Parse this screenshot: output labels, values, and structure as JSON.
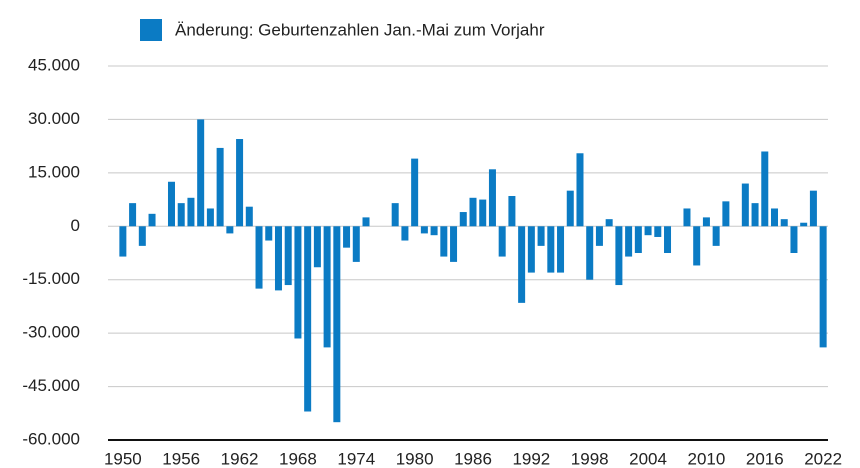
{
  "chart_data": {
    "type": "bar",
    "series": [
      {
        "name": "Änderung: Geburtenzahlen Jan.-Mai zum Vorjahr",
        "color": "#0b7bc4",
        "values": [
          -8500,
          6500,
          -5500,
          3500,
          0,
          12500,
          6500,
          8000,
          30000,
          5000,
          22000,
          -2000,
          24500,
          5500,
          -17500,
          -4000,
          -18000,
          -16500,
          -31500,
          -52000,
          -11500,
          -34000,
          -55000,
          -6000,
          -10000,
          2500,
          0,
          0,
          6500,
          -4000,
          19000,
          -2000,
          -2500,
          -8500,
          -10000,
          4000,
          8000,
          7500,
          16000,
          -8500,
          8500,
          -21500,
          -13000,
          -5500,
          -13000,
          -13000,
          10000,
          20500,
          -15000,
          -5500,
          2000,
          -16500,
          -8500,
          -7500,
          -2500,
          -3000,
          -7500,
          0,
          5000,
          -11000,
          2500,
          -5500,
          7000,
          0,
          12000,
          6500,
          21000,
          5000,
          2000,
          -7500,
          1000,
          10000,
          -34000
        ]
      }
    ],
    "categories": [
      "1950",
      null,
      null,
      null,
      null,
      null,
      "1956",
      null,
      null,
      null,
      null,
      null,
      "1962",
      null,
      null,
      null,
      null,
      null,
      "1968",
      null,
      null,
      null,
      null,
      null,
      "1974",
      null,
      null,
      null,
      null,
      null,
      "1980",
      null,
      null,
      null,
      null,
      null,
      "1986",
      null,
      null,
      null,
      null,
      null,
      "1992",
      null,
      null,
      null,
      null,
      null,
      "1998",
      null,
      null,
      null,
      null,
      null,
      "2004",
      null,
      null,
      null,
      null,
      null,
      "2010",
      null,
      null,
      null,
      null,
      null,
      "2016",
      null,
      null,
      null,
      null,
      null,
      "2022"
    ],
    "ylim": [
      -60000,
      45000
    ],
    "yticks": [
      {
        "value": -60000,
        "label": "-60.000"
      },
      {
        "value": -45000,
        "label": "-45.000"
      },
      {
        "value": -30000,
        "label": "-30.000"
      },
      {
        "value": -15000,
        "label": "-15.000"
      },
      0,
      {
        "value": 15000,
        "label": "15.000"
      },
      {
        "value": 30000,
        "label": "30.000"
      },
      {
        "value": 45000,
        "label": "45.000"
      }
    ],
    "grid": true,
    "legend": "top"
  }
}
